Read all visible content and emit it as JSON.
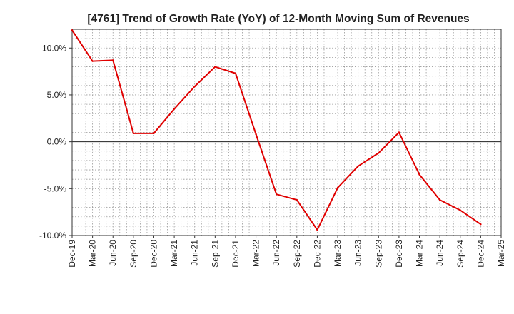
{
  "chart_data": {
    "type": "line",
    "title": "[4761]  Trend of Growth Rate (YoY) of 12-Month Moving Sum of Revenues",
    "xlabel": "",
    "ylabel": "",
    "ylim": [
      -10,
      12
    ],
    "y_ticks": [
      {
        "value": 10,
        "label": "10.0%"
      },
      {
        "value": 5,
        "label": "5.0%"
      },
      {
        "value": 0,
        "label": "0.0%"
      },
      {
        "value": -5,
        "label": "-5.0%"
      },
      {
        "value": -10,
        "label": "-10.0%"
      }
    ],
    "x_ticks": [
      "Dec-19",
      "Mar-20",
      "Jun-20",
      "Sep-20",
      "Dec-20",
      "Mar-21",
      "Jun-21",
      "Sep-21",
      "Dec-21",
      "Mar-22",
      "Jun-22",
      "Sep-22",
      "Dec-22",
      "Mar-23",
      "Jun-23",
      "Sep-23",
      "Dec-23",
      "Mar-24",
      "Jun-24",
      "Sep-24",
      "Dec-24",
      "Mar-25"
    ],
    "grid": true,
    "series": [
      {
        "color": "#e00000",
        "x": [
          "Dec-19",
          "Mar-20",
          "Jun-20",
          "Sep-20",
          "Dec-20",
          "Mar-21",
          "Jun-21",
          "Sep-21",
          "Dec-21",
          "Mar-22",
          "Jun-22",
          "Sep-22",
          "Dec-22",
          "Mar-23",
          "Jun-23",
          "Sep-23",
          "Dec-23",
          "Mar-24",
          "Jun-24",
          "Sep-24",
          "Dec-24"
        ],
        "values": [
          11.9,
          8.6,
          8.7,
          0.9,
          0.9,
          3.5,
          5.9,
          8.0,
          7.3,
          0.8,
          -5.6,
          -6.2,
          -9.4,
          -4.9,
          -2.6,
          -1.2,
          1.0,
          -3.5,
          -6.2,
          -7.3,
          -8.8
        ]
      }
    ]
  }
}
